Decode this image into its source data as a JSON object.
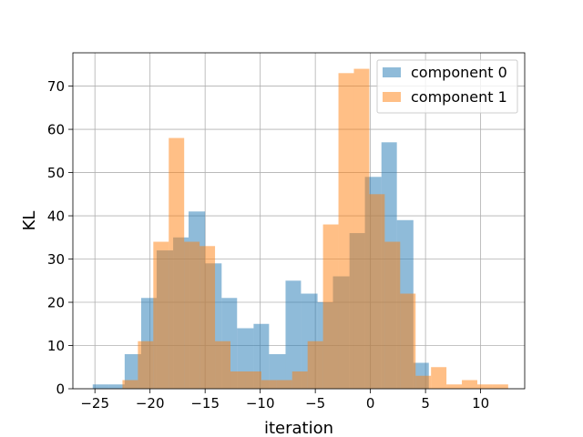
{
  "chart_data": {
    "type": "histogram",
    "xlabel": "iteration",
    "ylabel": "KL",
    "xlim": [
      -27,
      14
    ],
    "ylim": [
      0,
      77.7
    ],
    "grid": true,
    "legend_position": "top-right",
    "x_ticks": [
      -25,
      -20,
      -15,
      -10,
      -5,
      0,
      5,
      10
    ],
    "x_tick_labels": [
      "−25",
      "−20",
      "−15",
      "−10",
      "−5",
      "0",
      "5",
      "10"
    ],
    "y_ticks": [
      0,
      10,
      20,
      30,
      40,
      50,
      60,
      70
    ],
    "y_tick_labels": [
      "0",
      "10",
      "20",
      "30",
      "40",
      "50",
      "60",
      "70"
    ],
    "series": [
      {
        "name": "component 0",
        "color": "#1f77b4",
        "opacity": 0.5,
        "bins": [
          {
            "x0": -25.2,
            "x1": -23.7,
            "count": 1
          },
          {
            "x0": -23.7,
            "x1": -22.3,
            "count": 1
          },
          {
            "x0": -22.3,
            "x1": -20.8,
            "count": 8
          },
          {
            "x0": -20.8,
            "x1": -19.4,
            "count": 21
          },
          {
            "x0": -19.4,
            "x1": -17.9,
            "count": 32
          },
          {
            "x0": -17.9,
            "x1": -16.5,
            "count": 35
          },
          {
            "x0": -16.5,
            "x1": -15.0,
            "count": 41
          },
          {
            "x0": -15.0,
            "x1": -13.5,
            "count": 29
          },
          {
            "x0": -13.5,
            "x1": -12.1,
            "count": 21
          },
          {
            "x0": -12.1,
            "x1": -10.6,
            "count": 14
          },
          {
            "x0": -10.6,
            "x1": -9.2,
            "count": 15
          },
          {
            "x0": -9.2,
            "x1": -7.7,
            "count": 8
          },
          {
            "x0": -7.7,
            "x1": -6.3,
            "count": 25
          },
          {
            "x0": -6.3,
            "x1": -4.8,
            "count": 22
          },
          {
            "x0": -4.8,
            "x1": -3.4,
            "count": 20
          },
          {
            "x0": -3.4,
            "x1": -1.9,
            "count": 26
          },
          {
            "x0": -1.9,
            "x1": -0.5,
            "count": 36
          },
          {
            "x0": -0.5,
            "x1": 1.0,
            "count": 49
          },
          {
            "x0": 1.0,
            "x1": 2.4,
            "count": 57
          },
          {
            "x0": 2.4,
            "x1": 3.9,
            "count": 39
          },
          {
            "x0": 3.9,
            "x1": 5.3,
            "count": 6
          }
        ]
      },
      {
        "name": "component 1",
        "color": "#ff7f0e",
        "opacity": 0.5,
        "bins": [
          {
            "x0": -22.5,
            "x1": -21.1,
            "count": 2
          },
          {
            "x0": -21.1,
            "x1": -19.7,
            "count": 11
          },
          {
            "x0": -19.7,
            "x1": -18.3,
            "count": 34
          },
          {
            "x0": -18.3,
            "x1": -16.9,
            "count": 58
          },
          {
            "x0": -16.9,
            "x1": -15.5,
            "count": 34
          },
          {
            "x0": -15.5,
            "x1": -14.1,
            "count": 33
          },
          {
            "x0": -14.1,
            "x1": -12.7,
            "count": 11
          },
          {
            "x0": -12.7,
            "x1": -11.3,
            "count": 4
          },
          {
            "x0": -11.3,
            "x1": -9.9,
            "count": 4
          },
          {
            "x0": -9.9,
            "x1": -8.5,
            "count": 2
          },
          {
            "x0": -8.5,
            "x1": -7.1,
            "count": 2
          },
          {
            "x0": -7.1,
            "x1": -5.7,
            "count": 4
          },
          {
            "x0": -5.7,
            "x1": -4.3,
            "count": 11
          },
          {
            "x0": -4.3,
            "x1": -2.9,
            "count": 38
          },
          {
            "x0": -2.9,
            "x1": -1.5,
            "count": 73
          },
          {
            "x0": -1.5,
            "x1": -0.1,
            "count": 74
          },
          {
            "x0": -0.1,
            "x1": 1.3,
            "count": 45
          },
          {
            "x0": 1.3,
            "x1": 2.7,
            "count": 34
          },
          {
            "x0": 2.7,
            "x1": 4.1,
            "count": 22
          },
          {
            "x0": 4.1,
            "x1": 5.5,
            "count": 3
          },
          {
            "x0": 5.5,
            "x1": 6.9,
            "count": 5
          },
          {
            "x0": 6.9,
            "x1": 8.3,
            "count": 1
          },
          {
            "x0": 8.3,
            "x1": 9.7,
            "count": 2
          },
          {
            "x0": 9.7,
            "x1": 11.1,
            "count": 1
          },
          {
            "x0": 11.1,
            "x1": 12.5,
            "count": 1
          }
        ]
      }
    ]
  }
}
